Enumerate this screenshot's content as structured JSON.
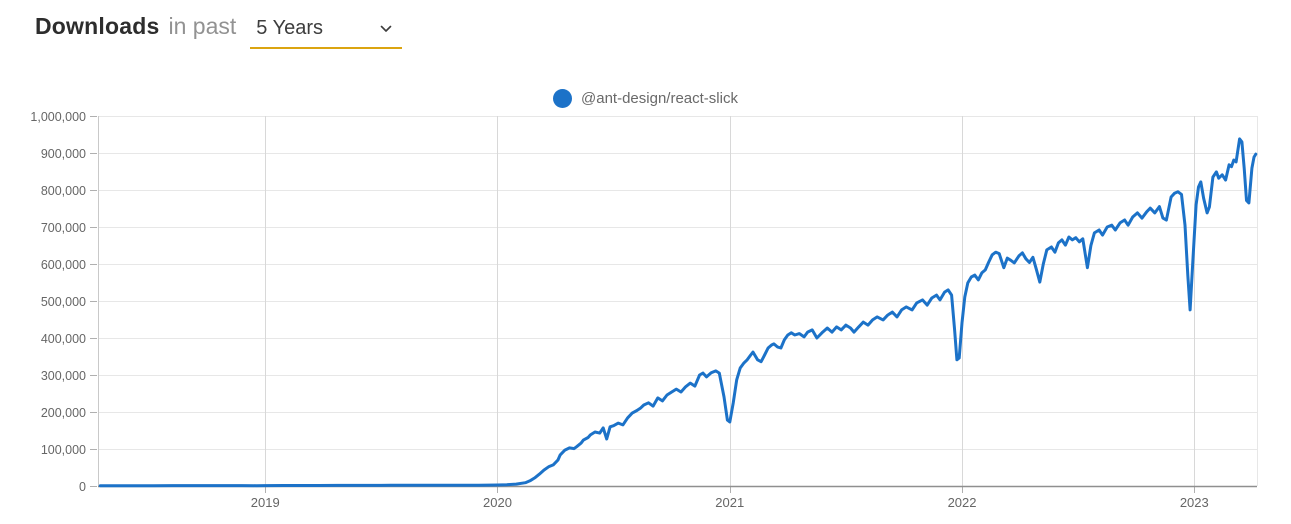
{
  "header": {
    "title": "Downloads",
    "subtitle": "in past",
    "range_select": {
      "value": "5 Years"
    }
  },
  "colors": {
    "accent_underline": "#dba410",
    "series_blue": "#1c72c8",
    "tick_text": "#666666"
  },
  "chart_data": {
    "type": "line",
    "title": "Downloads in past 5 Years",
    "xlabel": "",
    "ylabel": "",
    "grid": true,
    "legend_position": "top-center",
    "xlim": [
      2018.28,
      2023.27
    ],
    "ylim": [
      0,
      1000000
    ],
    "x_ticks": [
      2019,
      2020,
      2021,
      2022,
      2023
    ],
    "x_tick_labels": [
      "2019",
      "2020",
      "2021",
      "2022",
      "2023"
    ],
    "y_ticks": [
      0,
      100000,
      200000,
      300000,
      400000,
      500000,
      600000,
      700000,
      800000,
      900000,
      1000000
    ],
    "y_tick_labels": [
      "0",
      "100,000",
      "200,000",
      "300,000",
      "400,000",
      "500,000",
      "600,000",
      "700,000",
      "800,000",
      "900,000",
      "1,000,000"
    ],
    "series": [
      {
        "name": "@ant-design/react-slick",
        "color": "#1c72c8",
        "points": [
          [
            2018.29,
            700
          ],
          [
            2018.36,
            800
          ],
          [
            2018.44,
            850
          ],
          [
            2018.52,
            900
          ],
          [
            2018.6,
            950
          ],
          [
            2018.67,
            1000
          ],
          [
            2018.75,
            1050
          ],
          [
            2018.83,
            1100
          ],
          [
            2018.9,
            1150
          ],
          [
            2018.96,
            900
          ],
          [
            2019,
            1000
          ],
          [
            2019.08,
            1250
          ],
          [
            2019.15,
            1350
          ],
          [
            2019.23,
            1450
          ],
          [
            2019.31,
            1550
          ],
          [
            2019.38,
            1650
          ],
          [
            2019.46,
            1750
          ],
          [
            2019.54,
            1850
          ],
          [
            2019.62,
            1950
          ],
          [
            2019.69,
            2050
          ],
          [
            2019.77,
            2150
          ],
          [
            2019.85,
            2250
          ],
          [
            2019.92,
            2000
          ],
          [
            2019.96,
            2300
          ],
          [
            2020,
            2800
          ],
          [
            2020.04,
            3600
          ],
          [
            2020.08,
            5200
          ],
          [
            2020.12,
            9000
          ],
          [
            2020.14,
            14000
          ],
          [
            2020.16,
            22000
          ],
          [
            2020.18,
            32000
          ],
          [
            2020.2,
            43000
          ],
          [
            2020.22,
            52000
          ],
          [
            2020.24,
            57000
          ],
          [
            2020.26,
            70000
          ],
          [
            2020.27,
            84000
          ],
          [
            2020.29,
            97000
          ],
          [
            2020.31,
            103000
          ],
          [
            2020.33,
            101000
          ],
          [
            2020.34,
            106000
          ],
          [
            2020.36,
            116000
          ],
          [
            2020.37,
            124000
          ],
          [
            2020.39,
            131000
          ],
          [
            2020.4,
            138000
          ],
          [
            2020.42,
            146000
          ],
          [
            2020.44,
            143000
          ],
          [
            2020.455,
            157000
          ],
          [
            2020.47,
            127000
          ],
          [
            2020.485,
            160000
          ],
          [
            2020.5,
            163000
          ],
          [
            2020.52,
            170000
          ],
          [
            2020.54,
            165000
          ],
          [
            2020.56,
            184000
          ],
          [
            2020.58,
            197000
          ],
          [
            2020.6,
            204000
          ],
          [
            2020.615,
            210000
          ],
          [
            2020.63,
            219000
          ],
          [
            2020.65,
            225000
          ],
          [
            2020.67,
            216000
          ],
          [
            2020.69,
            238000
          ],
          [
            2020.71,
            230000
          ],
          [
            2020.73,
            246000
          ],
          [
            2020.75,
            254000
          ],
          [
            2020.77,
            262000
          ],
          [
            2020.79,
            254000
          ],
          [
            2020.81,
            268000
          ],
          [
            2020.83,
            278000
          ],
          [
            2020.85,
            270000
          ],
          [
            2020.87,
            300000
          ],
          [
            2020.885,
            305000
          ],
          [
            2020.9,
            295000
          ],
          [
            2020.92,
            306000
          ],
          [
            2020.94,
            311000
          ],
          [
            2020.955,
            305000
          ],
          [
            2020.975,
            241000
          ],
          [
            2020.99,
            178000
          ],
          [
            2021,
            173000
          ],
          [
            2021.015,
            224000
          ],
          [
            2021.03,
            287000
          ],
          [
            2021.045,
            319000
          ],
          [
            2021.06,
            332000
          ],
          [
            2021.075,
            341000
          ],
          [
            2021.09,
            354000
          ],
          [
            2021.1,
            362000
          ],
          [
            2021.12,
            341000
          ],
          [
            2021.135,
            336000
          ],
          [
            2021.15,
            354000
          ],
          [
            2021.165,
            373000
          ],
          [
            2021.18,
            381000
          ],
          [
            2021.19,
            384000
          ],
          [
            2021.205,
            376000
          ],
          [
            2021.22,
            373000
          ],
          [
            2021.235,
            395000
          ],
          [
            2021.25,
            408000
          ],
          [
            2021.265,
            414000
          ],
          [
            2021.28,
            408000
          ],
          [
            2021.3,
            412000
          ],
          [
            2021.32,
            403000
          ],
          [
            2021.335,
            416000
          ],
          [
            2021.355,
            422000
          ],
          [
            2021.375,
            400000
          ],
          [
            2021.4,
            416000
          ],
          [
            2021.42,
            427000
          ],
          [
            2021.44,
            416000
          ],
          [
            2021.46,
            430000
          ],
          [
            2021.48,
            422000
          ],
          [
            2021.5,
            435000
          ],
          [
            2021.52,
            427000
          ],
          [
            2021.535,
            416000
          ],
          [
            2021.555,
            430000
          ],
          [
            2021.575,
            443000
          ],
          [
            2021.595,
            435000
          ],
          [
            2021.615,
            449000
          ],
          [
            2021.635,
            457000
          ],
          [
            2021.66,
            449000
          ],
          [
            2021.68,
            462000
          ],
          [
            2021.7,
            470000
          ],
          [
            2021.72,
            457000
          ],
          [
            2021.74,
            476000
          ],
          [
            2021.76,
            484000
          ],
          [
            2021.785,
            476000
          ],
          [
            2021.805,
            495000
          ],
          [
            2021.83,
            503000
          ],
          [
            2021.85,
            489000
          ],
          [
            2021.87,
            508000
          ],
          [
            2021.89,
            516000
          ],
          [
            2021.905,
            503000
          ],
          [
            2021.925,
            524000
          ],
          [
            2021.94,
            530000
          ],
          [
            2021.955,
            516000
          ],
          [
            2021.968,
            422000
          ],
          [
            2021.978,
            341000
          ],
          [
            2021.988,
            346000
          ],
          [
            2022,
            441000
          ],
          [
            2022.012,
            511000
          ],
          [
            2022.025,
            549000
          ],
          [
            2022.04,
            565000
          ],
          [
            2022.055,
            570000
          ],
          [
            2022.07,
            557000
          ],
          [
            2022.085,
            576000
          ],
          [
            2022.1,
            584000
          ],
          [
            2022.115,
            605000
          ],
          [
            2022.13,
            625000
          ],
          [
            2022.145,
            632000
          ],
          [
            2022.16,
            628000
          ],
          [
            2022.18,
            590000
          ],
          [
            2022.195,
            616000
          ],
          [
            2022.21,
            610000
          ],
          [
            2022.225,
            603000
          ],
          [
            2022.245,
            622000
          ],
          [
            2022.26,
            630000
          ],
          [
            2022.275,
            614000
          ],
          [
            2022.29,
            604000
          ],
          [
            2022.305,
            618000
          ],
          [
            2022.32,
            586000
          ],
          [
            2022.335,
            551000
          ],
          [
            2022.35,
            600000
          ],
          [
            2022.365,
            638000
          ],
          [
            2022.385,
            646000
          ],
          [
            2022.4,
            632000
          ],
          [
            2022.415,
            657000
          ],
          [
            2022.43,
            665000
          ],
          [
            2022.445,
            651000
          ],
          [
            2022.46,
            673000
          ],
          [
            2022.475,
            665000
          ],
          [
            2022.49,
            671000
          ],
          [
            2022.505,
            660000
          ],
          [
            2022.52,
            668000
          ],
          [
            2022.54,
            590000
          ],
          [
            2022.555,
            650000
          ],
          [
            2022.57,
            684000
          ],
          [
            2022.59,
            692000
          ],
          [
            2022.605,
            678000
          ],
          [
            2022.625,
            700000
          ],
          [
            2022.645,
            705000
          ],
          [
            2022.66,
            692000
          ],
          [
            2022.68,
            711000
          ],
          [
            2022.7,
            719000
          ],
          [
            2022.715,
            705000
          ],
          [
            2022.735,
            727000
          ],
          [
            2022.755,
            738000
          ],
          [
            2022.775,
            724000
          ],
          [
            2022.795,
            741000
          ],
          [
            2022.81,
            751000
          ],
          [
            2022.83,
            738000
          ],
          [
            2022.85,
            755000
          ],
          [
            2022.865,
            724000
          ],
          [
            2022.88,
            719000
          ],
          [
            2022.9,
            781000
          ],
          [
            2022.915,
            791000
          ],
          [
            2022.93,
            795000
          ],
          [
            2022.945,
            788000
          ],
          [
            2022.96,
            705000
          ],
          [
            2022.972,
            570000
          ],
          [
            2022.982,
            476000
          ],
          [
            2022.995,
            620000
          ],
          [
            2023.008,
            760000
          ],
          [
            2023.018,
            808000
          ],
          [
            2023.028,
            822000
          ],
          [
            2023.04,
            778000
          ],
          [
            2023.055,
            738000
          ],
          [
            2023.065,
            754000
          ],
          [
            2023.08,
            835000
          ],
          [
            2023.095,
            849000
          ],
          [
            2023.105,
            832000
          ],
          [
            2023.12,
            841000
          ],
          [
            2023.135,
            827000
          ],
          [
            2023.15,
            868000
          ],
          [
            2023.16,
            863000
          ],
          [
            2023.17,
            881000
          ],
          [
            2023.18,
            876000
          ],
          [
            2023.195,
            938000
          ],
          [
            2023.205,
            930000
          ],
          [
            2023.215,
            859000
          ],
          [
            2023.225,
            772000
          ],
          [
            2023.235,
            765000
          ],
          [
            2023.248,
            859000
          ],
          [
            2023.257,
            889000
          ],
          [
            2023.265,
            897000
          ]
        ]
      }
    ]
  }
}
